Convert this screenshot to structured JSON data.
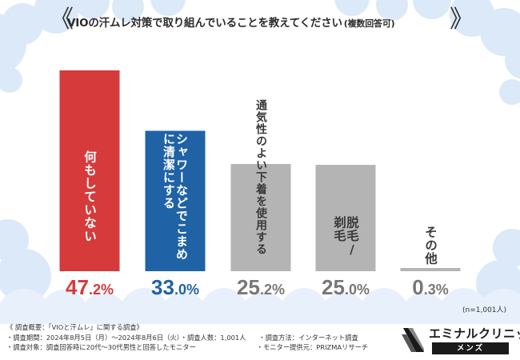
{
  "title": {
    "main": "VIOの汗ムレ対策で取り組んでいることを教えてください",
    "sub": "(複数回答可)"
  },
  "chart_data": {
    "type": "bar",
    "title": "VIOの汗ムレ対策で取り組んでいることを教えてください(複数回答可)",
    "categories": [
      "何もしていない",
      "シャワーなどでこまめに清潔にする",
      "通気性のよい下着を使用する",
      "脱毛/剃毛",
      "その他"
    ],
    "value_labels": [
      "47.2%",
      "33.0%",
      "25.2%",
      "25.0%",
      "0.3%"
    ],
    "values": [
      47.2,
      33.0,
      25.2,
      25.0,
      0.3
    ],
    "unit": "%",
    "ylim": [
      0,
      50
    ],
    "grid": false,
    "colors": [
      "#d63a3a",
      "#1f62a6",
      "#b4b4b4",
      "#b4b4b4",
      "#b4b4b4"
    ],
    "label_colors": [
      "#d63a3a",
      "#1f62a6",
      "#777777",
      "#777777",
      "#777777"
    ]
  },
  "sample_note": "(n=1,001人)",
  "overview": {
    "heading": "《 調査概要：「VIOと汗ムレ」に関する調査》",
    "period": "・調査期間：2024年8月5日（月）〜2024年8月6日（火）",
    "count": "・調査人数：1,001人",
    "method": "・調査方法：インターネット調査",
    "target": "・調査対象：調査回答時に20代〜30代男性と回答したモニター",
    "provider": "・モニター提供元：PRIZMAリサーチ"
  },
  "logo": {
    "name": "エミナルクリニック",
    "tag": "メンズ"
  },
  "colors": {
    "bubble": "#dbe9f8",
    "red": "#d63a3a",
    "blue": "#1f62a6",
    "gray": "#b4b4b4"
  }
}
